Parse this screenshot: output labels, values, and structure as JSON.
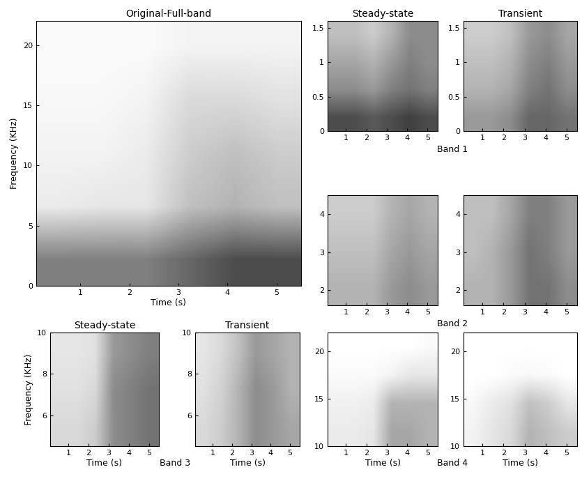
{
  "chart_data": [
    {
      "type": "heatmap",
      "title": "Original-Full-band",
      "x_label": "Time (s)",
      "y_label": "Frequency (KHz)",
      "xlim": [
        0.1,
        5.5
      ],
      "xticks": [
        1,
        2,
        3,
        4,
        5
      ],
      "ylim": [
        0,
        22
      ],
      "yticks": [
        0,
        5,
        10,
        15,
        20
      ],
      "cell_range": [
        0,
        1
      ],
      "cells": [
        [
          0.5,
          0.5,
          0.5,
          0.6,
          0.7,
          0.7
        ],
        [
          0.08,
          0.1,
          0.1,
          0.25,
          0.3,
          0.25
        ],
        [
          0.05,
          0.05,
          0.08,
          0.2,
          0.25,
          0.2
        ],
        [
          0.03,
          0.03,
          0.05,
          0.15,
          0.15,
          0.12
        ],
        [
          0.02,
          0.02,
          0.02,
          0.05,
          0.05,
          0.05
        ]
      ]
    },
    {
      "type": "heatmap",
      "title": "Steady-state",
      "band": "Band 1",
      "xlim": [
        0.1,
        5.5
      ],
      "xticks": [
        1,
        2,
        3,
        4,
        5
      ],
      "ylim": [
        0,
        1.6
      ],
      "yticks": [
        0,
        0.5,
        1,
        1.5
      ],
      "cell_range": [
        0,
        1
      ],
      "cells": [
        [
          0.7,
          0.7,
          0.65,
          0.7,
          0.75,
          0.7
        ],
        [
          0.45,
          0.45,
          0.4,
          0.5,
          0.55,
          0.5
        ],
        [
          0.35,
          0.35,
          0.3,
          0.4,
          0.5,
          0.45
        ],
        [
          0.25,
          0.25,
          0.2,
          0.3,
          0.45,
          0.45
        ]
      ]
    },
    {
      "type": "heatmap",
      "title": "Transient",
      "band": "Band 1",
      "xlim": [
        0.1,
        5.5
      ],
      "xticks": [
        1,
        2,
        3,
        4,
        5
      ],
      "ylim": [
        0,
        1.6
      ],
      "yticks": [
        0,
        0.5,
        1,
        1.5
      ],
      "cell_range": [
        0,
        1
      ],
      "cells": [
        [
          0.4,
          0.4,
          0.45,
          0.6,
          0.6,
          0.55
        ],
        [
          0.3,
          0.3,
          0.35,
          0.5,
          0.55,
          0.45
        ],
        [
          0.25,
          0.25,
          0.3,
          0.45,
          0.5,
          0.4
        ],
        [
          0.2,
          0.2,
          0.25,
          0.4,
          0.45,
          0.35
        ]
      ]
    },
    {
      "type": "heatmap",
      "band": "Band 2",
      "xlim": [
        0.1,
        5.5
      ],
      "xticks": [
        1,
        2,
        3,
        4,
        5
      ],
      "ylim": [
        1.6,
        4.5
      ],
      "yticks": [
        2,
        3,
        4
      ],
      "cell_range": [
        0,
        1
      ],
      "cells": [
        [
          0.3,
          0.3,
          0.3,
          0.4,
          0.45,
          0.4
        ],
        [
          0.25,
          0.25,
          0.25,
          0.35,
          0.4,
          0.35
        ],
        [
          0.2,
          0.2,
          0.2,
          0.3,
          0.35,
          0.3
        ]
      ]
    },
    {
      "type": "heatmap",
      "band": "Band 2",
      "xlim": [
        0.1,
        5.5
      ],
      "xticks": [
        1,
        2,
        3,
        4,
        5
      ],
      "ylim": [
        1.6,
        4.5
      ],
      "yticks": [
        2,
        3,
        4
      ],
      "cell_range": [
        0,
        1
      ],
      "cells": [
        [
          0.3,
          0.3,
          0.4,
          0.55,
          0.55,
          0.45
        ],
        [
          0.25,
          0.3,
          0.4,
          0.55,
          0.5,
          0.4
        ],
        [
          0.25,
          0.25,
          0.35,
          0.5,
          0.5,
          0.4
        ]
      ]
    },
    {
      "type": "heatmap",
      "title": "Steady-state",
      "band": "Band 3",
      "x_label": "Time (s)",
      "y_label": "Frequency (KHz)",
      "xlim": [
        0.1,
        5.5
      ],
      "xticks": [
        1,
        2,
        3,
        4,
        5
      ],
      "ylim": [
        4.5,
        10
      ],
      "yticks": [
        6,
        8,
        10
      ],
      "cell_range": [
        0,
        1
      ],
      "cells": [
        [
          0.15,
          0.15,
          0.2,
          0.45,
          0.5,
          0.55
        ],
        [
          0.12,
          0.12,
          0.15,
          0.45,
          0.5,
          0.55
        ],
        [
          0.1,
          0.1,
          0.12,
          0.4,
          0.45,
          0.5
        ]
      ]
    },
    {
      "type": "heatmap",
      "title": "Transient",
      "band": "Band 3",
      "x_label": "Time (s)",
      "xlim": [
        0.1,
        5.5
      ],
      "xticks": [
        1,
        2,
        3,
        4,
        5
      ],
      "ylim": [
        4.5,
        10
      ],
      "yticks": [
        6,
        8,
        10
      ],
      "cell_range": [
        0,
        1
      ],
      "cells": [
        [
          0.15,
          0.2,
          0.3,
          0.45,
          0.4,
          0.35
        ],
        [
          0.12,
          0.18,
          0.3,
          0.45,
          0.4,
          0.3
        ],
        [
          0.1,
          0.15,
          0.25,
          0.4,
          0.35,
          0.3
        ]
      ]
    },
    {
      "type": "heatmap",
      "band": "Band 4",
      "x_label": "Time (s)",
      "xlim": [
        0.1,
        5.5
      ],
      "xticks": [
        1,
        2,
        3,
        4,
        5
      ],
      "ylim": [
        10,
        22
      ],
      "yticks": [
        10,
        15,
        20
      ],
      "cell_range": [
        0,
        1
      ],
      "cells": [
        [
          0.08,
          0.08,
          0.1,
          0.35,
          0.35,
          0.3
        ],
        [
          0.06,
          0.06,
          0.08,
          0.3,
          0.3,
          0.3
        ],
        [
          0.02,
          0.02,
          0.02,
          0.05,
          0.1,
          0.1
        ],
        [
          0,
          0,
          0,
          0,
          0,
          0.02
        ]
      ]
    },
    {
      "type": "heatmap",
      "band": "Band 4",
      "x_label": "Time (s)",
      "xlim": [
        0.1,
        5.5
      ],
      "xticks": [
        1,
        2,
        3,
        4,
        5
      ],
      "ylim": [
        10,
        22
      ],
      "yticks": [
        10,
        15,
        20
      ],
      "cell_range": [
        0,
        1
      ],
      "cells": [
        [
          0.05,
          0.1,
          0.15,
          0.3,
          0.25,
          0.2
        ],
        [
          0.03,
          0.08,
          0.12,
          0.25,
          0.2,
          0.1
        ],
        [
          0,
          0,
          0.02,
          0.03,
          0.02,
          0
        ],
        [
          0,
          0,
          0,
          0,
          0,
          0
        ]
      ]
    }
  ]
}
